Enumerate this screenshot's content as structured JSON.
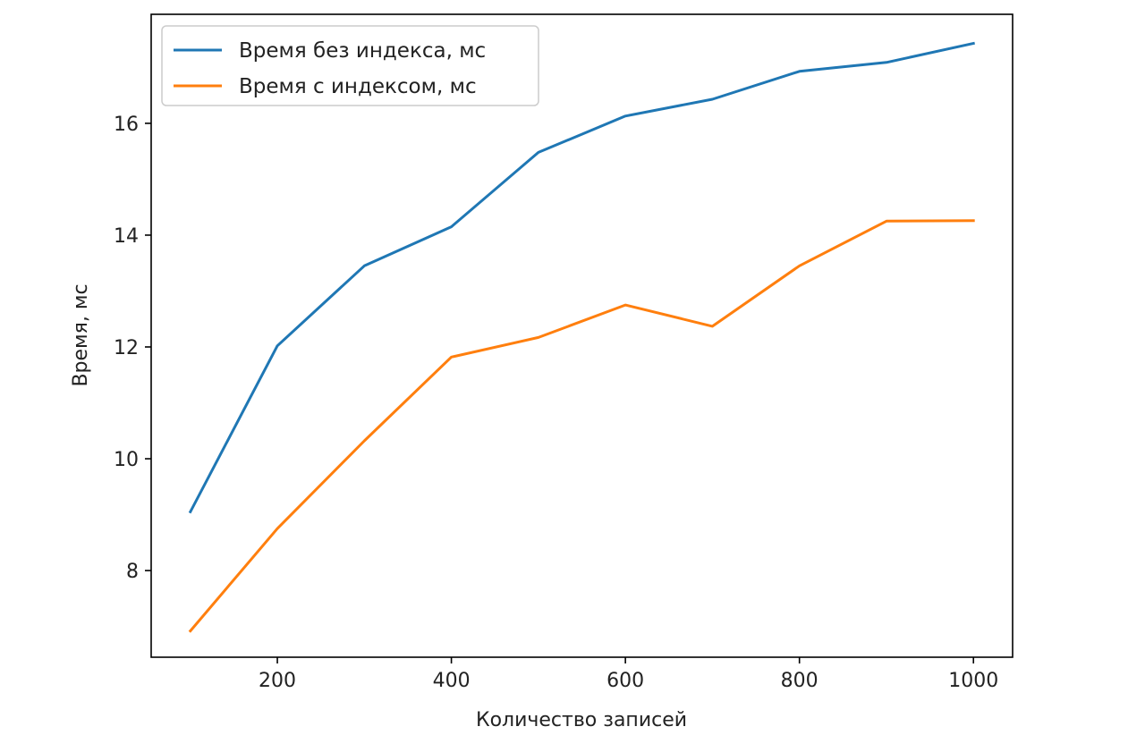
{
  "chart_data": {
    "type": "line",
    "title": "",
    "xlabel": "Количество записей",
    "ylabel": "Время, мс",
    "x": [
      100,
      200,
      300,
      400,
      500,
      600,
      700,
      800,
      900,
      1000
    ],
    "xlim": [
      55,
      1045
    ],
    "ylim": [
      6.45,
      17.95
    ],
    "xticks": [
      200,
      400,
      600,
      800,
      1000
    ],
    "xtick_labels": [
      "200",
      "400",
      "600",
      "800",
      "1000"
    ],
    "yticks": [
      8,
      10,
      12,
      14,
      16
    ],
    "ytick_labels": [
      "8",
      "10",
      "12",
      "14",
      "16"
    ],
    "grid": false,
    "legend_position": "top-left",
    "series": [
      {
        "name": "Время без индекса, мс",
        "color": "#1f77b4",
        "values": [
          9.05,
          12.02,
          13.45,
          14.15,
          15.48,
          16.13,
          16.43,
          16.93,
          17.09,
          17.43
        ]
      },
      {
        "name": "Время с индексом, мс",
        "color": "#ff7f0e",
        "values": [
          6.92,
          8.75,
          10.32,
          11.82,
          12.17,
          12.75,
          12.37,
          13.45,
          14.25,
          14.26
        ]
      }
    ]
  }
}
